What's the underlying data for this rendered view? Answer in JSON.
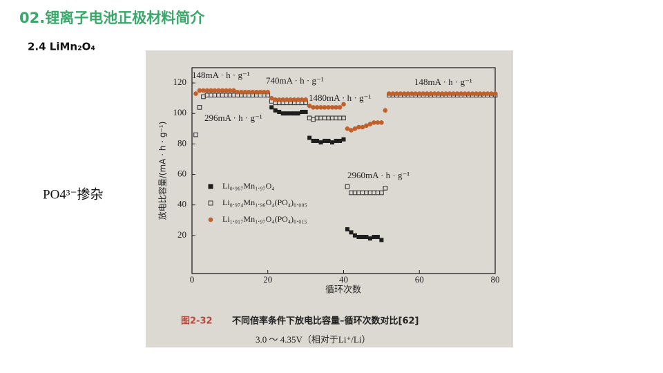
{
  "slide": {
    "title": "02.锂离子电池正极材料简介",
    "subtitle": "2.4 LiMn₂O₄",
    "side_note": "PO4³⁻掺杂"
  },
  "chart_data": {
    "type": "scatter",
    "caption_number": "图2-32",
    "caption": "不同倍率条件下放电比容量–循环次数对比[62]",
    "condition": "3.0 ～ 4.35V（相对于Li⁺/Li）",
    "x_label": "循环次数",
    "y_label": "放电比容量/(mA · h · g⁻¹)",
    "xlim": [
      0,
      80
    ],
    "xticks": [
      0,
      20,
      40,
      60,
      80
    ],
    "ylim": [
      -5,
      130
    ],
    "yticks": [
      20,
      40,
      60,
      80,
      100,
      120
    ],
    "annotations": [
      "148mA · h · g⁻¹",
      "740mA · h · g⁻¹",
      "1480mA · h · g⁻¹",
      "296mA · h · g⁻¹",
      "148mA · h · g⁻¹",
      "2960mA · h · g⁻¹"
    ],
    "series": [
      {
        "name": "Li₀.₉₆₇Mn₁.₉₇O₄",
        "color": "#1e1e1e",
        "marker": "square-filled",
        "x": [
          21,
          22,
          23,
          24,
          25,
          26,
          27,
          28,
          29,
          30,
          31,
          32,
          33,
          34,
          35,
          36,
          37,
          38,
          39,
          40,
          41,
          42,
          43,
          44,
          45,
          46,
          47,
          48,
          49,
          50
        ],
        "values": [
          104,
          102,
          101,
          100,
          100,
          100,
          100,
          100,
          101,
          101,
          84,
          82,
          82,
          81,
          82,
          82,
          81,
          82,
          82,
          83,
          24,
          22,
          20,
          19,
          19,
          19,
          18,
          19,
          19,
          17
        ]
      },
      {
        "name": "Li₀.₉₇₄Mn₁.₉₆O₄(PO₄)₀.₀₀₅",
        "color": "#3a3a3a",
        "marker": "square-open",
        "x": [
          1,
          2,
          3,
          4,
          5,
          6,
          7,
          8,
          9,
          10,
          11,
          12,
          13,
          14,
          15,
          16,
          17,
          18,
          19,
          20,
          21,
          22,
          23,
          24,
          25,
          26,
          27,
          28,
          29,
          30,
          31,
          32,
          33,
          34,
          35,
          36,
          37,
          38,
          39,
          40,
          41,
          42,
          43,
          44,
          45,
          46,
          47,
          48,
          49,
          50,
          51,
          52,
          53,
          54,
          55,
          56,
          57,
          58,
          59,
          60,
          61,
          62,
          63,
          64,
          65,
          66,
          67,
          68,
          69,
          70,
          71,
          72,
          73,
          74,
          75,
          76,
          77,
          78,
          79,
          80
        ],
        "values": [
          86,
          104,
          111,
          112,
          112,
          112,
          112,
          112,
          112,
          112,
          112,
          112,
          112,
          112,
          112,
          112,
          112,
          112,
          112,
          112,
          108,
          107,
          107,
          107,
          107,
          107,
          107,
          107,
          107,
          107,
          97,
          96,
          97,
          97,
          97,
          97,
          97,
          97,
          97,
          97,
          52,
          48,
          48,
          48,
          48,
          48,
          48,
          48,
          48,
          48,
          51,
          112,
          112,
          112,
          112,
          112,
          112,
          112,
          112,
          112,
          112,
          112,
          112,
          112,
          112,
          112,
          112,
          112,
          112,
          112,
          112,
          112,
          112,
          112,
          112,
          112,
          112,
          112,
          112,
          112
        ]
      },
      {
        "name": "Li₁.₀₁₇Mn₁.₉₇O₄(PO₄)₀.₀₁₅",
        "color": "#c0602a",
        "marker": "circle",
        "x": [
          1,
          2,
          3,
          4,
          5,
          6,
          7,
          8,
          9,
          10,
          11,
          12,
          13,
          14,
          15,
          16,
          17,
          18,
          19,
          20,
          21,
          22,
          23,
          24,
          25,
          26,
          27,
          28,
          29,
          30,
          31,
          32,
          33,
          34,
          35,
          36,
          37,
          38,
          39,
          40,
          41,
          42,
          43,
          44,
          45,
          46,
          47,
          48,
          49,
          50,
          51,
          52,
          53,
          54,
          55,
          56,
          57,
          58,
          59,
          60,
          61,
          62,
          63,
          64,
          65,
          66,
          67,
          68,
          69,
          70,
          71,
          72,
          73,
          74,
          75,
          76,
          77,
          78,
          79,
          80
        ],
        "values": [
          113,
          115,
          115,
          115,
          115,
          115,
          115,
          115,
          115,
          115,
          115,
          114,
          114,
          114,
          114,
          114,
          114,
          114,
          114,
          114,
          110,
          109,
          109,
          109,
          109,
          109,
          109,
          109,
          109,
          109,
          105,
          104,
          104,
          104,
          104,
          104,
          104,
          104,
          104,
          106,
          90,
          89,
          90,
          91,
          91,
          92,
          93,
          94,
          94,
          94,
          102,
          113,
          113,
          113,
          113,
          113,
          113,
          113,
          113,
          113,
          113,
          113,
          113,
          113,
          113,
          113,
          113,
          113,
          113,
          113,
          113,
          113,
          113,
          113,
          113,
          113,
          113,
          113,
          113,
          113
        ]
      }
    ]
  }
}
